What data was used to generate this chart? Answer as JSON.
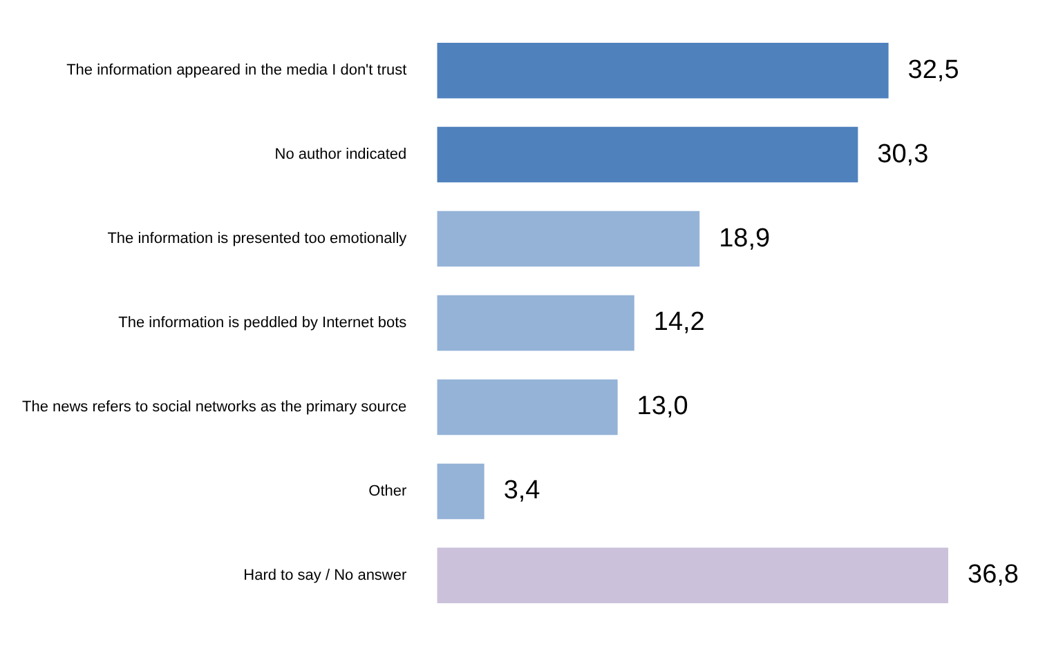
{
  "chart_data": {
    "type": "bar",
    "orientation": "horizontal",
    "categories": [
      "The information appeared in the media I don't trust",
      "No author indicated",
      "The information is presented too emotionally",
      "The information is peddled by Internet bots",
      "The news refers to social networks as the primary source",
      "Other",
      "Hard to say / No answer"
    ],
    "values": [
      32.5,
      30.3,
      18.9,
      14.2,
      13.0,
      3.4,
      36.8
    ],
    "value_labels": [
      "32,5",
      "30,3",
      "18,9",
      "14,2",
      "13,0",
      "3,4",
      "36,8"
    ],
    "colors": [
      "#4f81bd",
      "#4f81bd",
      "#95b3d7",
      "#95b3d7",
      "#95b3d7",
      "#95b3d7",
      "#ccc1da"
    ],
    "legend": false
  }
}
